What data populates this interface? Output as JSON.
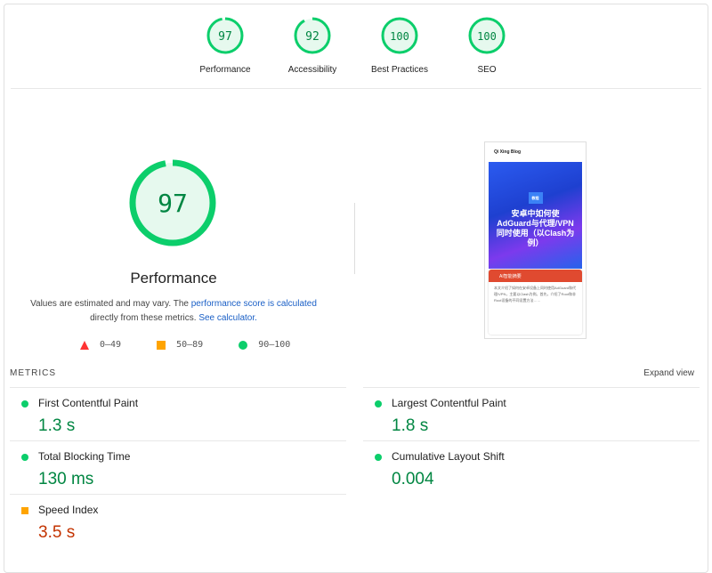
{
  "colors": {
    "pass": "#0cce6b",
    "average": "#ffa400",
    "fail": "#ff3333",
    "pass_text": "#018642",
    "average_text": "#c33300"
  },
  "categories": [
    {
      "label": "Performance",
      "score": 97
    },
    {
      "label": "Accessibility",
      "score": 92
    },
    {
      "label": "Best Practices",
      "score": 100
    },
    {
      "label": "SEO",
      "score": 100
    }
  ],
  "main": {
    "score": 97,
    "title": "Performance",
    "desc_1": "Values are estimated and may vary. The ",
    "link_1": "performance score is calculated",
    "desc_2": " directly from these metrics. ",
    "link_2": "See calculator.",
    "legend": [
      {
        "icon": "triangle-icon",
        "range": "0–49"
      },
      {
        "icon": "square-icon",
        "range": "50–89"
      },
      {
        "icon": "circle-icon",
        "range": "90–100"
      }
    ]
  },
  "thumbnail": {
    "site": "Qi Xing Blog",
    "badge": "教程",
    "headline": "安卓中如何使AdGuard与代理/VPN同时使用（以Clash为例）",
    "card_title": "AI智能摘要",
    "card_text": "本文介绍了如何在安卓设备上同时使用AdGuard和代理/VPN，主要以Clash为例。首先，介绍了Root和非Root设备的不同设置方法……"
  },
  "metrics_label": "METRICS",
  "expand_label": "Expand view",
  "metrics": [
    {
      "name": "First Contentful Paint",
      "value": "1.3 s",
      "rating": "pass"
    },
    {
      "name": "Largest Contentful Paint",
      "value": "1.8 s",
      "rating": "pass"
    },
    {
      "name": "Total Blocking Time",
      "value": "130 ms",
      "rating": "pass"
    },
    {
      "name": "Cumulative Layout Shift",
      "value": "0.004",
      "rating": "pass"
    },
    {
      "name": "Speed Index",
      "value": "3.5 s",
      "rating": "average"
    }
  ]
}
